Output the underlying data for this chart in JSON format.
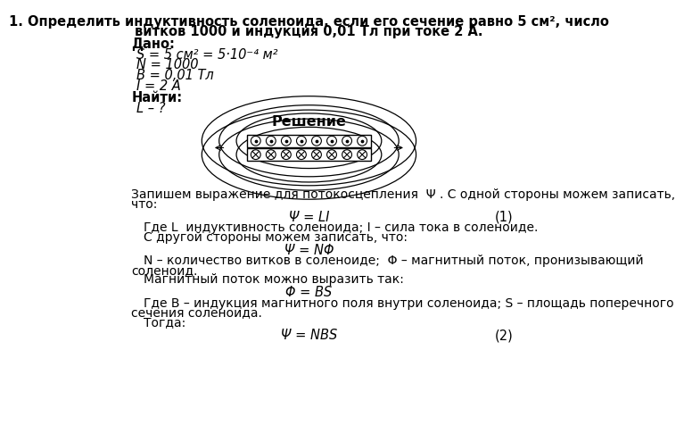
{
  "title_line1": "1. Определить индуктивность соленоида, если его сечение равно 5 см², число",
  "title_line2": "витков 1000 и индукция 0,01 Тл при токе 2 А.",
  "dado_label": "Дано:",
  "line1": "S = 5 см² = 5·10⁻⁴ м²",
  "line2": "N = 1000",
  "line3": "B = 0,01 Тл",
  "line4": "I = 2 A",
  "najti_label": "Найти:",
  "najti_val": "L – ?",
  "reshenie_label": "Решение",
  "para1_line1": "Запишем выражение для потокосцепления  Ψ . С одной стороны можем записать,",
  "para1_line2": "что:",
  "formula1": "Ψ = LI",
  "num1": "(1)",
  "explain1": "Где L  индуктивность соленоида; I – сила тока в соленоиде.",
  "explain2": "С другой стороны можем записать, что:",
  "formula2": "Ψ = NΦ",
  "explain3_line1": "N – количество витков в соленоиде;  Φ – магнитный поток, пронизывающий",
  "explain3_line2": "соленоид.",
  "explain4": "Магнитный поток можно выразить так:",
  "formula3": "Φ = BS",
  "explain5_line1": "Где B – индукция магнитного поля внутри соленоида; S – площадь поперечного",
  "explain5_line2": "сечения соленоида.",
  "explain6": "Тогда:",
  "formula4": "Ψ = NBS",
  "num2": "(2)",
  "bg_color": "#ffffff",
  "text_color": "#000000",
  "font_size": 10.5
}
